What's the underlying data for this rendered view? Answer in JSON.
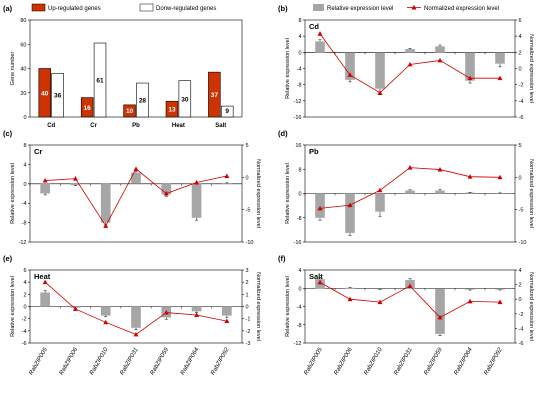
{
  "colors": {
    "up": "#cc3300",
    "down": "#ffffff",
    "relative": "#a6a6a6",
    "normalized": "#cc0000",
    "errorbar": "#000000"
  },
  "legend_a": [
    "Up-regulated genes",
    "Donw-regulated genes"
  ],
  "legend_b": [
    "Relative expression level",
    "Normalized expression level"
  ],
  "ylabel_gene": "Gene number",
  "ylabel_rel": "Relative expression level",
  "ylabel_norm": "Normalized expression level",
  "chart_data": [
    {
      "id": "a",
      "type": "bar",
      "panel_label": "(a)",
      "categories": [
        "Cd",
        "Cr",
        "Pb",
        "Heat",
        "Salt"
      ],
      "series": [
        {
          "name": "Up-regulated genes",
          "values": [
            40,
            16,
            10,
            13,
            37
          ]
        },
        {
          "name": "Donw-regulated genes",
          "values": [
            36,
            61,
            28,
            30,
            9
          ]
        }
      ],
      "ylabel": "Gene number",
      "ylim": [
        0,
        80
      ],
      "yticks": [
        0,
        20,
        40,
        60,
        80
      ]
    },
    {
      "id": "b",
      "type": "bar+line",
      "panel_label": "(b)",
      "title": "Cd",
      "categories": [
        "RabZIP005",
        "RabZIP006",
        "RabZIP010",
        "RabZIP031",
        "RabZIP059",
        "RabZIP064",
        "RabZIP092"
      ],
      "relative": [
        2.7,
        -6.8,
        -9.0,
        0.8,
        1.5,
        -7.0,
        -2.8
      ],
      "relative_err": [
        0.4,
        0.5,
        1.5,
        0.2,
        0.3,
        0.6,
        0.8
      ],
      "normalized": [
        4.3,
        -0.8,
        -3.0,
        0.5,
        1.0,
        -1.2,
        -1.2
      ],
      "ylim_left": [
        -16,
        8
      ],
      "yticks_left": [
        -16,
        -12,
        -8,
        -4,
        0,
        4,
        8
      ],
      "ylim_right": [
        -6,
        6
      ],
      "yticks_right": [
        -6,
        -4,
        -2,
        0,
        2,
        4,
        6
      ],
      "show_categories": false
    },
    {
      "id": "c",
      "type": "bar+line",
      "panel_label": "(c)",
      "title": "Cr",
      "categories": [
        "RabZIP005",
        "RabZIP006",
        "RabZIP010",
        "RabZIP031",
        "RabZIP059",
        "RabZIP064",
        "RabZIP092"
      ],
      "relative": [
        -2.0,
        -0.3,
        -8.0,
        2.3,
        -2.2,
        -7.0,
        0.1
      ],
      "relative_err": [
        0.3,
        0.1,
        1.0,
        0.3,
        0.4,
        0.5,
        0.1
      ],
      "normalized": [
        -0.5,
        -0.2,
        -7.5,
        1.3,
        -2.5,
        -0.8,
        0.2
      ],
      "ylim_left": [
        -12,
        8
      ],
      "yticks_left": [
        -12,
        -8,
        -4,
        0,
        4,
        8
      ],
      "ylim_right": [
        -10,
        5
      ],
      "yticks_right": [
        -10,
        -5,
        0,
        5
      ],
      "show_categories": false
    },
    {
      "id": "d",
      "type": "bar+line",
      "panel_label": "(d)",
      "title": "Pb",
      "categories": [
        "RabZIP005",
        "RabZIP006",
        "RabZIP010",
        "RabZIP031",
        "RabZIP059",
        "RabZIP064",
        "RabZIP092"
      ],
      "relative": [
        -8.0,
        -13.0,
        -6.0,
        1.0,
        1.0,
        0.3,
        0.1
      ],
      "relative_err": [
        0.8,
        0.8,
        1.5,
        0.2,
        0.3,
        0.1,
        0.1
      ],
      "normalized": [
        -4.8,
        -4.3,
        -2.0,
        1.5,
        1.2,
        0.1,
        0.0
      ],
      "ylim_left": [
        -16,
        16
      ],
      "yticks_left": [
        -16,
        -8,
        0,
        8,
        16
      ],
      "ylim_right": [
        -10,
        5
      ],
      "yticks_right": [
        -10,
        -5,
        0,
        5
      ],
      "show_categories": false
    },
    {
      "id": "e",
      "type": "bar+line",
      "panel_label": "(e)",
      "title": "Heat",
      "categories": [
        "RabZIP005",
        "RabZIP006",
        "RabZIP010",
        "RabZIP031",
        "RabZIP059",
        "RabZIP064",
        "RabZIP092"
      ],
      "relative": [
        2.3,
        -0.2,
        -1.5,
        -3.5,
        -1.8,
        -0.8,
        -1.5
      ],
      "relative_err": [
        0.3,
        0.1,
        0.2,
        0.3,
        0.3,
        0.2,
        0.3
      ],
      "normalized": [
        2.0,
        -0.2,
        -1.3,
        -2.3,
        -0.5,
        -0.7,
        -1.2
      ],
      "ylim_left": [
        -6,
        6
      ],
      "yticks_left": [
        -6,
        -4,
        -2,
        0,
        2,
        4,
        6
      ],
      "ylim_right": [
        -3,
        3
      ],
      "yticks_right": [
        -3,
        -2,
        -1,
        0,
        1,
        2,
        3
      ],
      "show_categories": true
    },
    {
      "id": "f",
      "type": "bar+line",
      "panel_label": "(f)",
      "title": "Salt",
      "categories": [
        "RabZIP005",
        "RabZIP006",
        "RabZIP010",
        "RabZIP031",
        "RabZIP059",
        "RabZIP064",
        "RabZIP092"
      ],
      "relative": [
        2.0,
        0.1,
        -0.2,
        1.8,
        -10.0,
        -0.3,
        -0.3
      ],
      "relative_err": [
        0.3,
        0.1,
        0.1,
        0.3,
        0.4,
        0.1,
        0.1
      ],
      "normalized": [
        2.3,
        0.0,
        -0.4,
        1.8,
        -2.5,
        -0.3,
        -0.4
      ],
      "ylim_left": [
        -12,
        4
      ],
      "yticks_left": [
        -12,
        -8,
        -4,
        0,
        4
      ],
      "ylim_right": [
        -6,
        4
      ],
      "yticks_right": [
        -6,
        -4,
        -2,
        0,
        2,
        4
      ],
      "show_categories": true
    }
  ]
}
